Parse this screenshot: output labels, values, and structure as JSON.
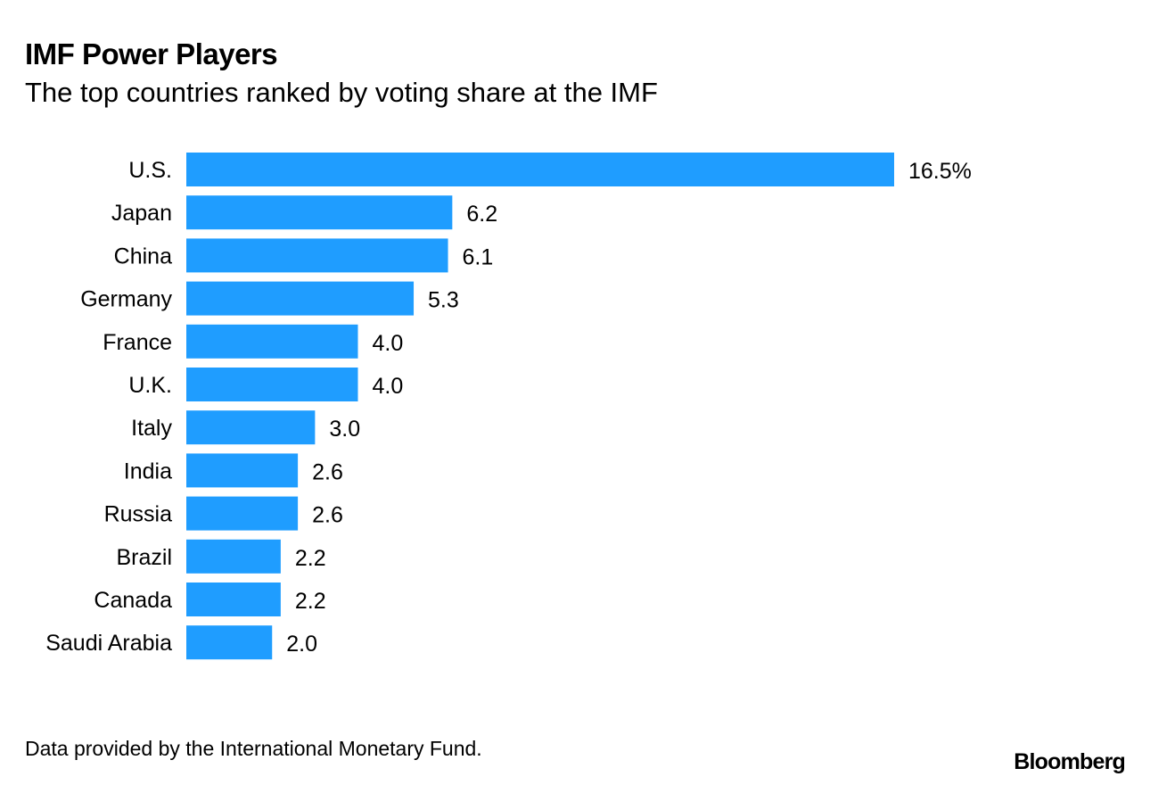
{
  "chart_data": {
    "type": "bar",
    "orientation": "horizontal",
    "title": "IMF Power Players",
    "subtitle": "The top countries ranked by voting share at the IMF",
    "categories": [
      "U.S.",
      "Japan",
      "China",
      "Germany",
      "France",
      "U.K.",
      "Italy",
      "India",
      "Russia",
      "Brazil",
      "Canada",
      "Saudi Arabia"
    ],
    "values": [
      16.5,
      6.2,
      6.1,
      5.3,
      4.0,
      4.0,
      3.0,
      2.6,
      2.6,
      2.2,
      2.2,
      2.0
    ],
    "data_labels": [
      "16.5%",
      "6.2",
      "6.1",
      "5.3",
      "4.0",
      "4.0",
      "3.0",
      "2.6",
      "2.6",
      "2.2",
      "2.2",
      "2.0"
    ],
    "unit": "%",
    "bar_color": "#1f9dff",
    "grid": false,
    "xlim": [
      0,
      16.5
    ]
  },
  "footer": {
    "source": "Data provided by the International Monetary Fund.",
    "logo": "Bloomberg"
  }
}
